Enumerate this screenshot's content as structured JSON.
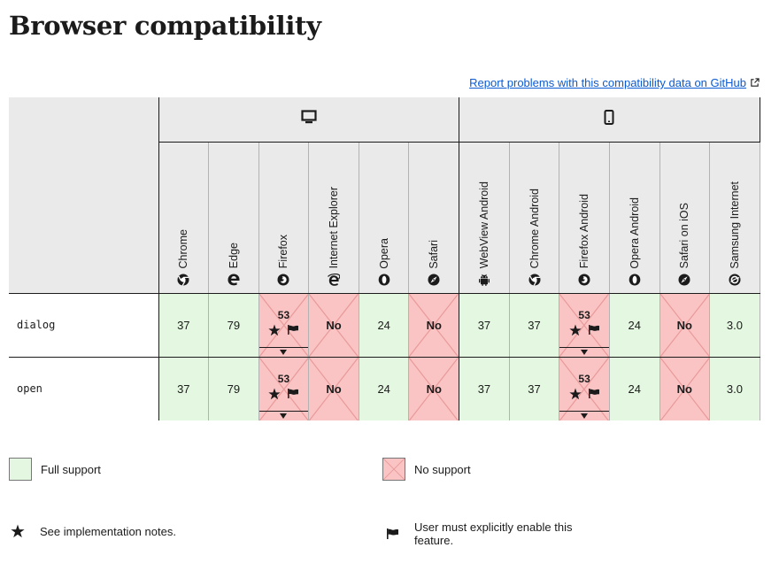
{
  "title": "Browser compatibility",
  "report_link": "Report problems with this compatibility data on GitHub",
  "platforms": [
    {
      "name": "desktop",
      "icon": "desktop-icon"
    },
    {
      "name": "mobile",
      "icon": "mobile-icon"
    }
  ],
  "browsers": [
    {
      "label": "Chrome",
      "icon": "chrome-icon"
    },
    {
      "label": "Edge",
      "icon": "edge-icon"
    },
    {
      "label": "Firefox",
      "icon": "firefox-icon"
    },
    {
      "label": "Internet Explorer",
      "icon": "ie-icon"
    },
    {
      "label": "Opera",
      "icon": "opera-icon"
    },
    {
      "label": "Safari",
      "icon": "safari-icon"
    },
    {
      "label": "WebView Android",
      "icon": "android-icon"
    },
    {
      "label": "Chrome Android",
      "icon": "chrome-icon"
    },
    {
      "label": "Firefox Android",
      "icon": "firefox-icon"
    },
    {
      "label": "Opera Android",
      "icon": "opera-icon"
    },
    {
      "label": "Safari on iOS",
      "icon": "safari-icon"
    },
    {
      "label": "Samsung Internet",
      "icon": "samsung-icon"
    }
  ],
  "rows": [
    {
      "feature": "dialog",
      "cells": [
        {
          "v": "37",
          "s": "yes"
        },
        {
          "v": "79",
          "s": "yes"
        },
        {
          "v": "53",
          "s": "part"
        },
        {
          "v": "No",
          "s": "no"
        },
        {
          "v": "24",
          "s": "yes"
        },
        {
          "v": "No",
          "s": "no"
        },
        {
          "v": "37",
          "s": "yes"
        },
        {
          "v": "37",
          "s": "yes"
        },
        {
          "v": "53",
          "s": "part"
        },
        {
          "v": "24",
          "s": "yes"
        },
        {
          "v": "No",
          "s": "no"
        },
        {
          "v": "3.0",
          "s": "yes"
        }
      ]
    },
    {
      "feature": "open",
      "cells": [
        {
          "v": "37",
          "s": "yes"
        },
        {
          "v": "79",
          "s": "yes"
        },
        {
          "v": "53",
          "s": "part"
        },
        {
          "v": "No",
          "s": "no"
        },
        {
          "v": "24",
          "s": "yes"
        },
        {
          "v": "No",
          "s": "no"
        },
        {
          "v": "37",
          "s": "yes"
        },
        {
          "v": "37",
          "s": "yes"
        },
        {
          "v": "53",
          "s": "part"
        },
        {
          "v": "24",
          "s": "yes"
        },
        {
          "v": "No",
          "s": "no"
        },
        {
          "v": "3.0",
          "s": "yes"
        }
      ]
    }
  ],
  "legend": {
    "full": "Full support",
    "no": "No support",
    "notes": "See implementation notes.",
    "flag": "User must explicitly enable this feature."
  },
  "colors": {
    "yes": "#e4f8e1",
    "no": "#fbc4c4",
    "link": "#0a5ad4"
  }
}
